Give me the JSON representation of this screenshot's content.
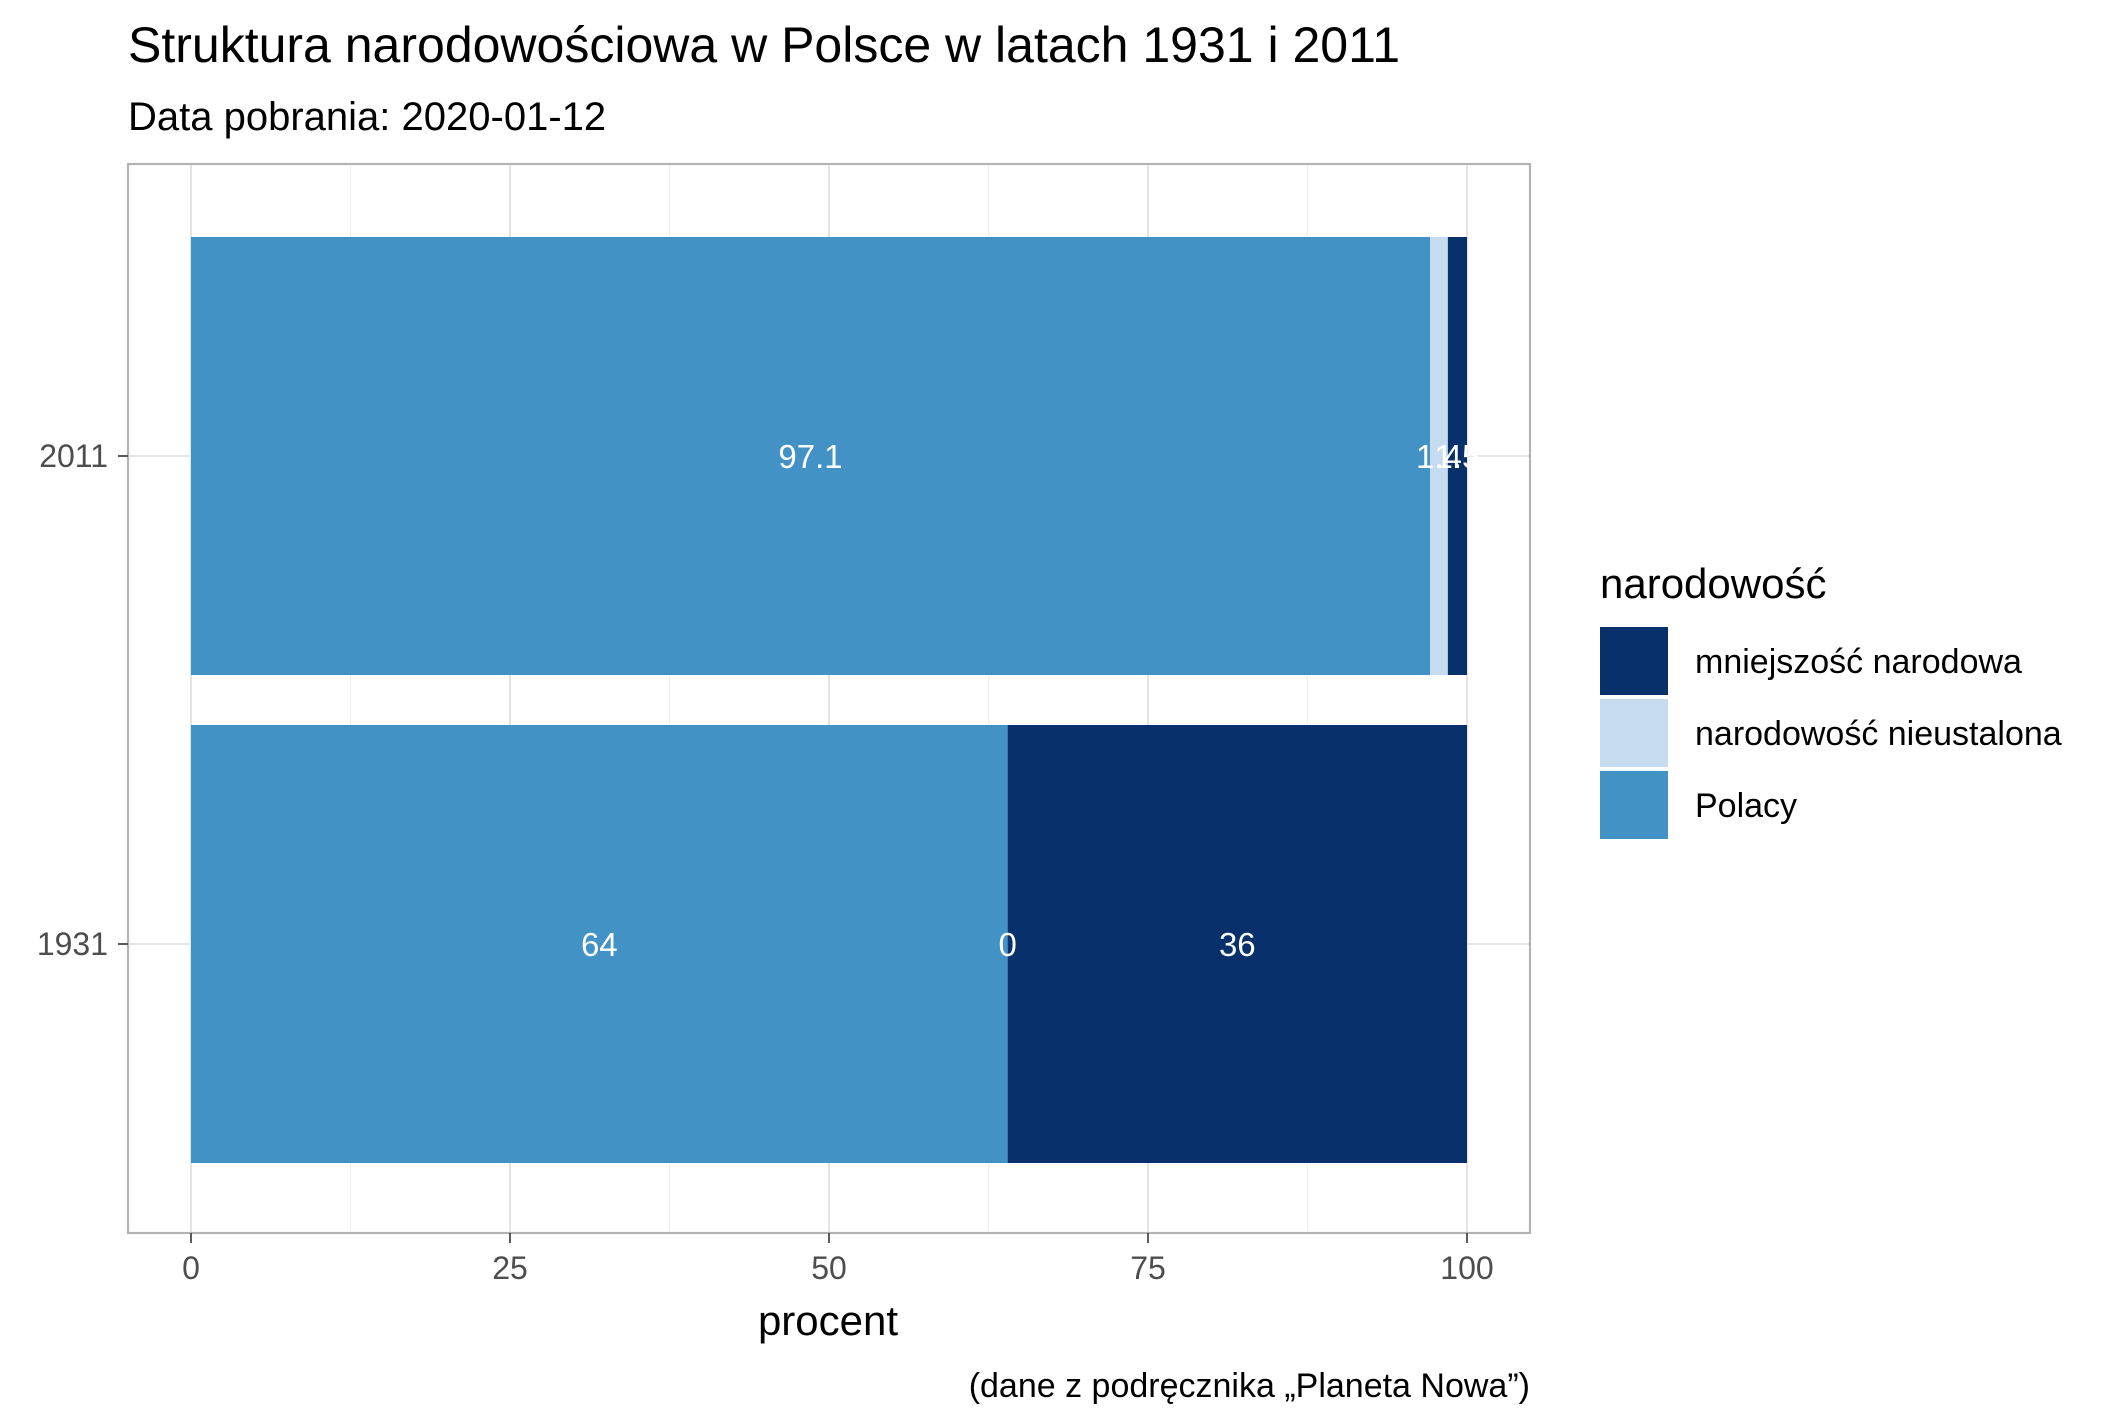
{
  "chart_data": {
    "type": "bar",
    "orientation": "horizontal",
    "stacked": true,
    "title": "Struktura narodowościowa w Polsce w latach 1931 i 2011",
    "subtitle": "Data pobrania: 2020-01-12",
    "xlabel": "procent",
    "ylabel": "",
    "caption": "(dane z podręcznika „Planeta Nowa”)",
    "xlim": [
      0,
      100
    ],
    "x_ticks": [
      "0",
      "25",
      "50",
      "75",
      "100"
    ],
    "categories": [
      "1931",
      "2011"
    ],
    "grid": true,
    "legend": {
      "title": "narodowość",
      "placement": "right",
      "entries": [
        "mniejszość narodowa",
        "narodowość nieustalona",
        "Polacy"
      ]
    },
    "series": [
      {
        "name": "Polacy",
        "color": "#4292c6",
        "values": [
          64,
          97.1
        ],
        "labels": [
          "64",
          "97.1"
        ]
      },
      {
        "name": "narodowość nieustalona",
        "color": "#c6dbef",
        "values": [
          0,
          1.4
        ],
        "labels": [
          "0",
          "1.4"
        ]
      },
      {
        "name": "mniejszość narodowa",
        "color": "#08306b",
        "values": [
          36,
          1.5
        ],
        "labels": [
          "36",
          "1.5"
        ]
      }
    ]
  }
}
